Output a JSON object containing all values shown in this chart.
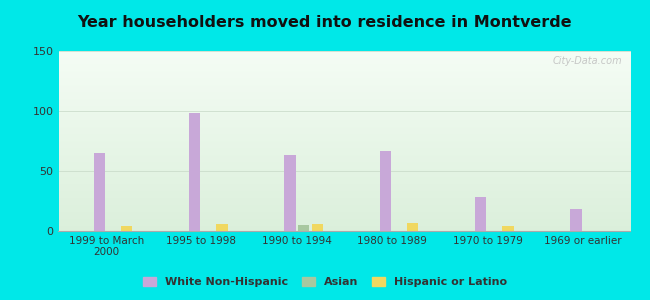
{
  "title": "Year householders moved into residence in Montverde",
  "categories": [
    "1999 to March\n2000",
    "1995 to 1998",
    "1990 to 1994",
    "1980 to 1989",
    "1970 to 1979",
    "1969 or earlier"
  ],
  "white_non_hispanic": [
    65,
    98,
    63,
    67,
    28,
    18
  ],
  "asian": [
    0,
    0,
    5,
    0,
    0,
    0
  ],
  "hispanic_or_latino": [
    4,
    6,
    6,
    7,
    4,
    0
  ],
  "bar_colors": {
    "white_non_hispanic": "#c8a8d8",
    "asian": "#a8c8a0",
    "hispanic_or_latino": "#f0d860"
  },
  "ylim": [
    0,
    150
  ],
  "yticks": [
    0,
    50,
    100,
    150
  ],
  "background_color": "#00e8e8",
  "watermark": "City-Data.com",
  "bar_width": 0.12,
  "legend_labels": [
    "White Non-Hispanic",
    "Asian",
    "Hispanic or Latino"
  ]
}
